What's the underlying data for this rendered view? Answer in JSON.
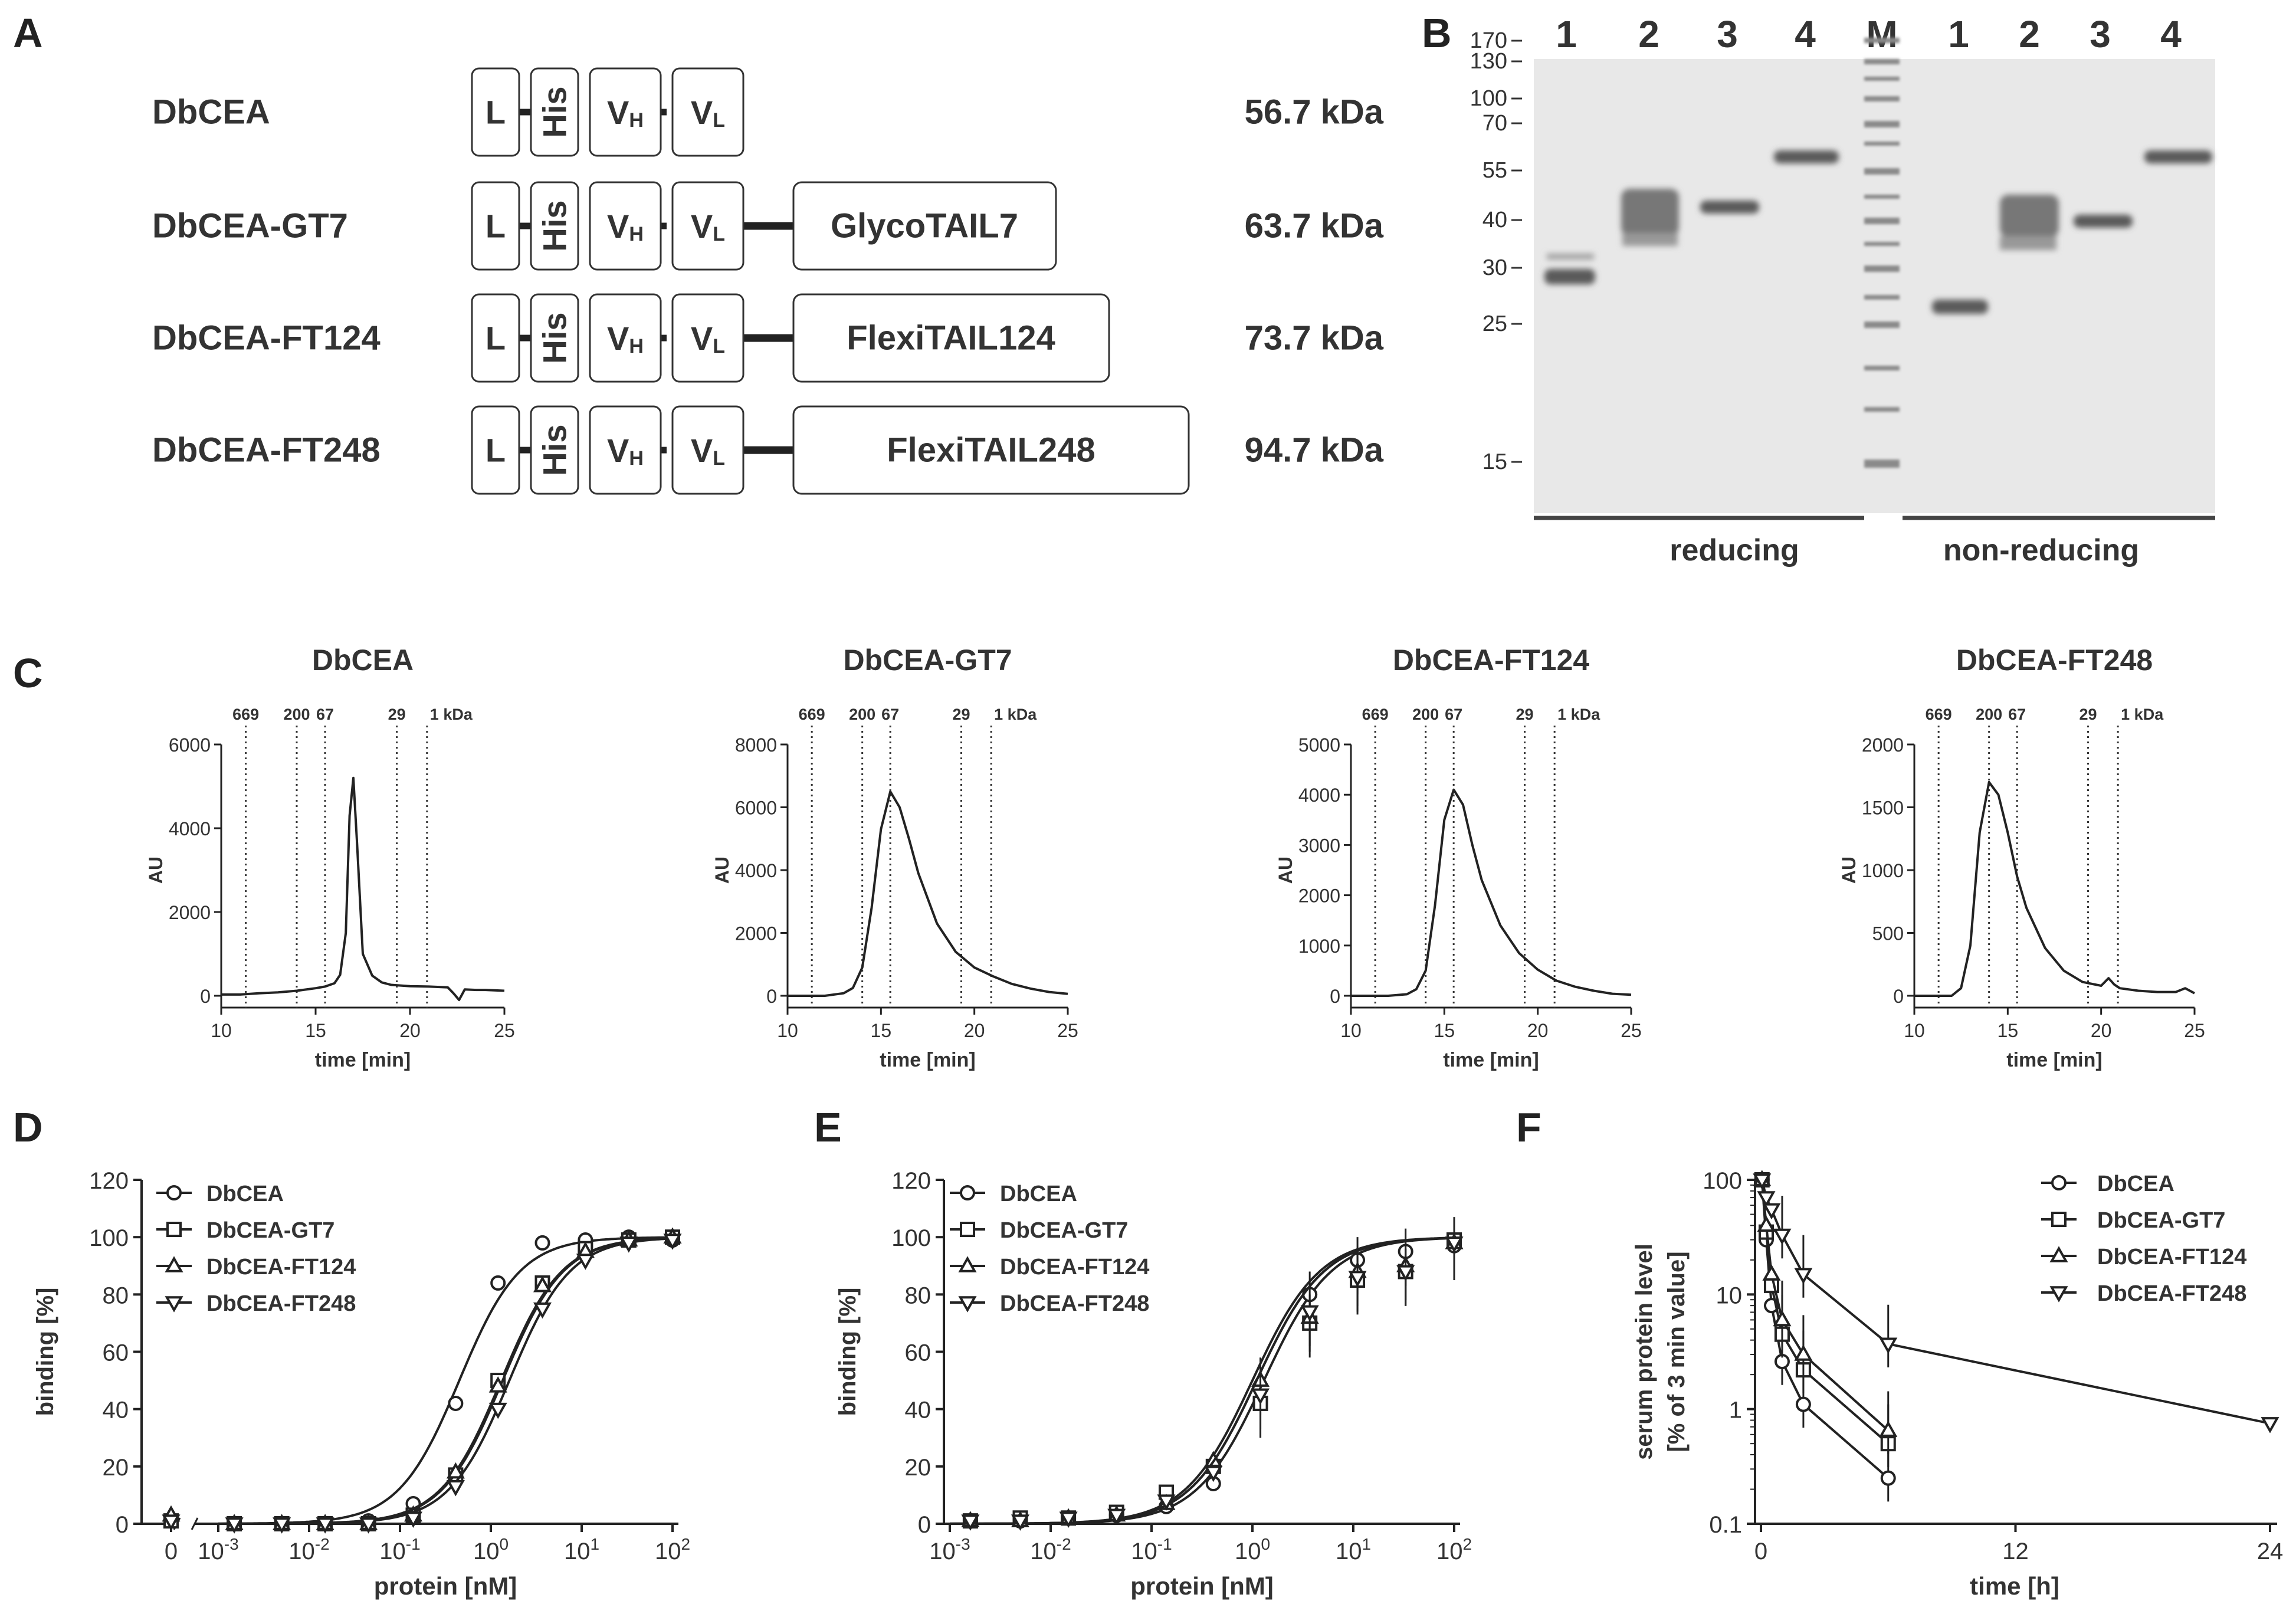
{
  "colors": {
    "ink": "#222222",
    "box_stroke": "#333333",
    "gel_bg": "#e9e9e9",
    "band": "#6e6e6e"
  },
  "panel_labels": {
    "A": "A",
    "B": "B",
    "C": "C",
    "D": "D",
    "E": "E",
    "F": "F"
  },
  "panelA": {
    "constructs": [
      {
        "name": "DbCEA",
        "tail": "",
        "mass": "56.7 kDa"
      },
      {
        "name": "DbCEA-GT7",
        "tail": "GlycoTAIL7",
        "mass": "63.7 kDa"
      },
      {
        "name": "DbCEA-FT124",
        "tail": "FlexiTAIL124",
        "mass": "73.7 kDa"
      },
      {
        "name": "DbCEA-FT248",
        "tail": "FlexiTAIL248",
        "mass": "94.7 kDa"
      }
    ],
    "domains": {
      "L": "L",
      "His": "His",
      "VH": "V",
      "VH_sub": "H",
      "VL": "V",
      "VL_sub": "L"
    }
  },
  "panelB": {
    "lanes": [
      "1",
      "2",
      "3",
      "4",
      "M",
      "1",
      "2",
      "3",
      "4"
    ],
    "marker_kda": [
      "170",
      "130",
      "100",
      "70",
      "55",
      "40",
      "30",
      "25",
      "15"
    ],
    "condition_labels": [
      "reducing",
      "non-reducing"
    ]
  },
  "panelC": {
    "ylabel": "AU",
    "xlabel": "time [min]",
    "marker_labels": [
      "669",
      "200",
      "67",
      "29",
      "1 kDa"
    ],
    "marker_times_min": [
      11.3,
      14.0,
      15.5,
      19.3,
      20.9
    ],
    "chart_data": [
      {
        "type": "line",
        "title": "DbCEA",
        "xlim": [
          10,
          25
        ],
        "ylim": [
          0,
          6000
        ],
        "yticks": [
          "0",
          "2000",
          "4000",
          "6000"
        ],
        "xticks": [
          "10",
          "15",
          "20",
          "25"
        ],
        "x": [
          10,
          11,
          12,
          13,
          14,
          15,
          15.5,
          16,
          16.3,
          16.6,
          16.8,
          17.0,
          17.2,
          17.5,
          18,
          18.5,
          19,
          20,
          21,
          22,
          22.3,
          22.6,
          22.9,
          23.5,
          24,
          25
        ],
        "values": [
          30,
          30,
          60,
          80,
          120,
          180,
          220,
          300,
          500,
          1500,
          4300,
          5200,
          3600,
          1000,
          480,
          320,
          260,
          230,
          220,
          200,
          60,
          -100,
          150,
          140,
          140,
          120
        ]
      },
      {
        "type": "line",
        "title": "DbCEA-GT7",
        "xlim": [
          10,
          25
        ],
        "ylim": [
          0,
          8000
        ],
        "yticks": [
          "0",
          "2000",
          "4000",
          "6000",
          "8000"
        ],
        "xticks": [
          "10",
          "15",
          "20",
          "25"
        ],
        "x": [
          10,
          12,
          13,
          13.5,
          14,
          14.5,
          15,
          15.5,
          16,
          16.5,
          17,
          18,
          19,
          20,
          21,
          22,
          23,
          24,
          25
        ],
        "values": [
          0,
          0,
          80,
          250,
          900,
          2800,
          5300,
          6500,
          6000,
          5000,
          3900,
          2300,
          1400,
          900,
          620,
          380,
          230,
          120,
          60
        ]
      },
      {
        "type": "line",
        "title": "DbCEA-FT124",
        "xlim": [
          10,
          25
        ],
        "ylim": [
          0,
          5000
        ],
        "yticks": [
          "0",
          "1000",
          "2000",
          "3000",
          "4000",
          "5000"
        ],
        "xticks": [
          "10",
          "15",
          "20",
          "25"
        ],
        "x": [
          10,
          12,
          13,
          13.5,
          14,
          14.5,
          15,
          15.5,
          16,
          16.5,
          17,
          18,
          19,
          20,
          21,
          22,
          23,
          24,
          25
        ],
        "values": [
          0,
          0,
          30,
          130,
          500,
          1800,
          3500,
          4100,
          3800,
          3000,
          2300,
          1400,
          850,
          520,
          300,
          180,
          100,
          40,
          20
        ]
      },
      {
        "type": "line",
        "title": "DbCEA-FT248",
        "xlim": [
          10,
          25
        ],
        "ylim": [
          0,
          2000
        ],
        "yticks": [
          "0",
          "500",
          "1000",
          "1500",
          "2000"
        ],
        "xticks": [
          "10",
          "15",
          "20",
          "25"
        ],
        "x": [
          10,
          12,
          12.5,
          13,
          13.5,
          14,
          14.5,
          15,
          15.5,
          16,
          17,
          18,
          19,
          20,
          20.4,
          20.7,
          21,
          22,
          23,
          24,
          24.5,
          25
        ],
        "values": [
          0,
          0,
          60,
          400,
          1300,
          1700,
          1600,
          1300,
          950,
          700,
          380,
          200,
          110,
          80,
          140,
          90,
          60,
          40,
          30,
          30,
          60,
          20
        ]
      }
    ]
  },
  "panelD": {
    "chart_data": {
      "type": "line",
      "xscale": "log",
      "xlabel": "protein [nM]",
      "ylabel": "binding [%]",
      "ylim": [
        0,
        120
      ],
      "xlim_log10": [
        -3,
        2
      ],
      "yticks": [
        "0",
        "20",
        "40",
        "60",
        "80",
        "100",
        "120"
      ],
      "xtick_base": "10",
      "xtick_exps": [
        "-3",
        "-2",
        "-1",
        "0",
        "1",
        "2"
      ],
      "zero_label": "0",
      "x": [
        0.0015,
        0.005,
        0.015,
        0.045,
        0.14,
        0.41,
        1.2,
        3.7,
        11,
        33,
        100
      ],
      "series": [
        {
          "name": "DbCEA",
          "marker": "circle",
          "ec50": 0.45,
          "values": [
            0,
            0,
            0,
            1,
            7,
            42,
            84,
            98,
            99,
            100,
            99
          ],
          "zero_value": 1
        },
        {
          "name": "DbCEA-GT7",
          "marker": "square",
          "ec50": 1.3,
          "values": [
            0,
            0,
            0,
            0,
            3,
            17,
            50,
            84,
            96,
            99,
            100
          ],
          "zero_value": 1
        },
        {
          "name": "DbCEA-FT124",
          "marker": "triangle-up",
          "ec50": 1.35,
          "values": [
            0,
            0,
            0,
            0,
            3,
            18,
            48,
            83,
            95,
            99,
            100
          ],
          "zero_value": 3
        },
        {
          "name": "DbCEA-FT248",
          "marker": "triangle-down",
          "ec50": 1.6,
          "values": [
            0,
            0,
            0,
            0,
            2,
            13,
            40,
            75,
            92,
            98,
            99
          ],
          "zero_value": 1
        }
      ]
    }
  },
  "panelE": {
    "chart_data": {
      "type": "line",
      "xscale": "log",
      "xlabel": "protein [nM]",
      "ylabel": "binding [%]",
      "ylim": [
        0,
        120
      ],
      "xlim_log10": [
        -3,
        2
      ],
      "yticks": [
        "0",
        "20",
        "40",
        "60",
        "80",
        "100",
        "120"
      ],
      "xtick_base": "10",
      "xtick_exps": [
        "-3",
        "-2",
        "-1",
        "0",
        "1",
        "2"
      ],
      "x": [
        0.0016,
        0.005,
        0.015,
        0.045,
        0.14,
        0.41,
        1.2,
        3.7,
        11,
        33,
        100
      ],
      "series": [
        {
          "name": "DbCEA",
          "marker": "circle",
          "ec50": 1.3,
          "values": [
            1,
            1,
            2,
            3,
            6,
            14,
            42,
            80,
            92,
            95,
            97
          ]
        },
        {
          "name": "DbCEA-GT7",
          "marker": "square",
          "ec50": 1.1,
          "values": [
            1,
            2,
            2,
            4,
            11,
            20,
            42,
            70,
            85,
            88,
            99
          ]
        },
        {
          "name": "DbCEA-FT124",
          "marker": "triangle-up",
          "ec50": 1.0,
          "values": [
            1,
            1,
            2,
            3,
            7,
            22,
            50,
            72,
            88,
            90,
            98
          ]
        },
        {
          "name": "DbCEA-FT248",
          "marker": "triangle-down",
          "ec50": 1.1,
          "values": [
            1,
            1,
            2,
            3,
            8,
            18,
            45,
            74,
            86,
            88,
            98
          ]
        }
      ]
    }
  },
  "panelF": {
    "chart_data": {
      "type": "line",
      "yscale": "log",
      "xlabel": "time [h]",
      "ylabel_lines": [
        "serum protein level",
        "[% of 3 min value]"
      ],
      "xlim": [
        0,
        24
      ],
      "ylim": [
        0.1,
        100
      ],
      "xticks": [
        "0",
        "12",
        "24"
      ],
      "yticks": [
        "0.1",
        "1",
        "10",
        "100"
      ],
      "series": [
        {
          "name": "DbCEA",
          "marker": "circle",
          "x": [
            0.05,
            0.25,
            0.5,
            1,
            2,
            6
          ],
          "values": [
            100,
            30,
            8,
            2.6,
            1.1,
            0.25
          ]
        },
        {
          "name": "DbCEA-GT7",
          "marker": "square",
          "x": [
            0.05,
            0.25,
            0.5,
            1,
            2,
            6
          ],
          "values": [
            100,
            35,
            12,
            4.5,
            2.2,
            0.5
          ]
        },
        {
          "name": "DbCEA-FT124",
          "marker": "triangle-up",
          "x": [
            0.05,
            0.25,
            0.5,
            1,
            2,
            6
          ],
          "values": [
            100,
            40,
            15,
            6,
            3,
            0.65
          ]
        },
        {
          "name": "DbCEA-FT248",
          "marker": "triangle-down",
          "x": [
            0.05,
            0.25,
            0.5,
            1,
            2,
            6,
            24
          ],
          "values": [
            100,
            70,
            55,
            33,
            15,
            3.7,
            0.75
          ]
        }
      ]
    }
  }
}
